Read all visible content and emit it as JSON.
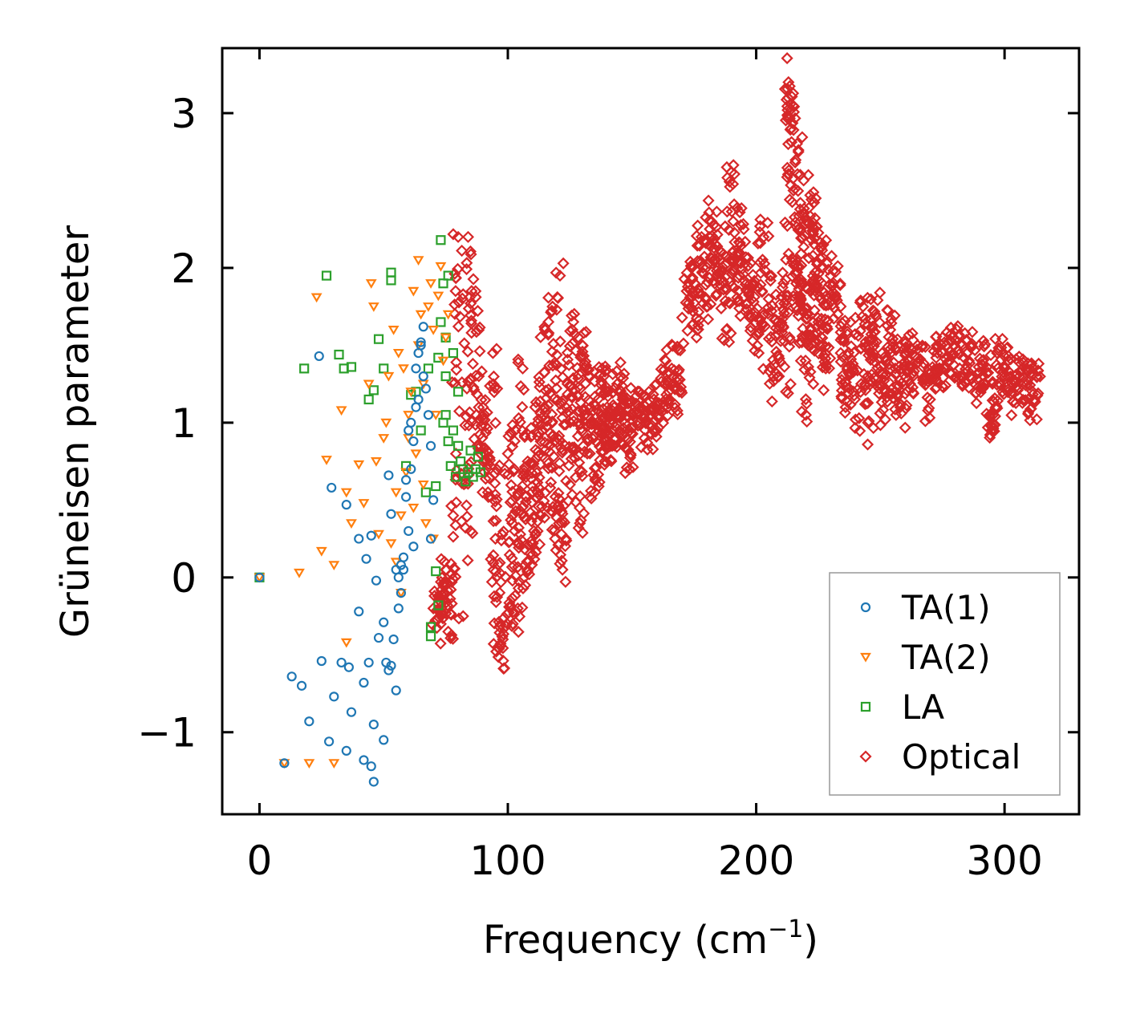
{
  "chart_data": {
    "type": "scatter",
    "title": "",
    "xlabel": "Frequency (cm",
    "xlabel_sup": "−1",
    "xlabel_end": ")",
    "ylabel": "Grüneisen parameter",
    "xlim": [
      -15,
      330
    ],
    "ylim": [
      -1.53,
      3.42
    ],
    "xticks": [
      0,
      100,
      200,
      300
    ],
    "xtick_labels": [
      "0",
      "100",
      "200",
      "300"
    ],
    "yticks": [
      -1,
      0,
      1,
      2,
      3
    ],
    "ytick_labels": [
      "−1",
      "0",
      "1",
      "2",
      "3"
    ],
    "grid": false,
    "legend_position": "lower-right",
    "series": [
      {
        "name": "TA(1)",
        "marker": "circle",
        "color": "#1f77b4",
        "points": [
          [
            0,
            0.0
          ],
          [
            10,
            -1.2
          ],
          [
            13,
            -0.64
          ],
          [
            17,
            -0.7
          ],
          [
            20,
            -0.93
          ],
          [
            25,
            -0.54
          ],
          [
            28,
            -1.06
          ],
          [
            30,
            -0.77
          ],
          [
            33,
            -0.55
          ],
          [
            35,
            -1.12
          ],
          [
            36,
            -0.58
          ],
          [
            37,
            -0.87
          ],
          [
            40,
            -0.22
          ],
          [
            42,
            -0.68
          ],
          [
            44,
            -0.55
          ],
          [
            46,
            -0.95
          ],
          [
            48,
            -0.39
          ],
          [
            50,
            -1.05
          ],
          [
            51,
            -0.55
          ],
          [
            53,
            -0.57
          ],
          [
            55,
            -0.73
          ],
          [
            45,
            -1.22
          ],
          [
            46,
            -1.32
          ],
          [
            42,
            -1.18
          ],
          [
            24,
            1.43
          ],
          [
            29,
            0.58
          ],
          [
            35,
            0.47
          ],
          [
            40,
            0.25
          ],
          [
            43,
            0.12
          ],
          [
            45,
            0.27
          ],
          [
            47,
            -0.02
          ],
          [
            50,
            -0.29
          ],
          [
            52,
            0.66
          ],
          [
            53,
            0.41
          ],
          [
            55,
            0.05
          ],
          [
            56,
            0.0
          ],
          [
            57,
            -0.1
          ],
          [
            58,
            0.13
          ],
          [
            59,
            0.63
          ],
          [
            60,
            0.95
          ],
          [
            61,
            1.0
          ],
          [
            62,
            0.88
          ],
          [
            63,
            1.1
          ],
          [
            64,
            1.15
          ],
          [
            64,
            1.45
          ],
          [
            65,
            1.5
          ],
          [
            66,
            1.62
          ],
          [
            66,
            1.3
          ],
          [
            67,
            1.22
          ],
          [
            68,
            1.05
          ],
          [
            69,
            0.85
          ],
          [
            70,
            0.5
          ],
          [
            69,
            0.25
          ],
          [
            62,
            0.2
          ],
          [
            60,
            0.3
          ],
          [
            58,
            0.05
          ],
          [
            56,
            -0.2
          ],
          [
            54,
            -0.4
          ],
          [
            52,
            -0.6
          ],
          [
            57,
            0.08
          ],
          [
            59,
            0.52
          ],
          [
            61,
            0.7
          ],
          [
            63,
            1.35
          ],
          [
            65,
            1.52
          ]
        ]
      },
      {
        "name": "TA(2)",
        "marker": "triangle",
        "color": "#ff7f0e",
        "points": [
          [
            0,
            0.0
          ],
          [
            10,
            -1.2
          ],
          [
            16,
            0.03
          ],
          [
            20,
            -1.2
          ],
          [
            23,
            1.81
          ],
          [
            25,
            0.17
          ],
          [
            27,
            0.76
          ],
          [
            30,
            -1.2
          ],
          [
            30,
            0.08
          ],
          [
            33,
            1.08
          ],
          [
            35,
            -0.42
          ],
          [
            35,
            0.55
          ],
          [
            37,
            0.35
          ],
          [
            40,
            0.73
          ],
          [
            42,
            0.48
          ],
          [
            44,
            1.25
          ],
          [
            45,
            1.9
          ],
          [
            46,
            1.75
          ],
          [
            47,
            0.75
          ],
          [
            48,
            0.28
          ],
          [
            50,
            0.9
          ],
          [
            51,
            1.0
          ],
          [
            52,
            1.3
          ],
          [
            53,
            0.22
          ],
          [
            54,
            1.6
          ],
          [
            55,
            0.55
          ],
          [
            56,
            1.45
          ],
          [
            57,
            0.4
          ],
          [
            58,
            1.35
          ],
          [
            59,
            0.68
          ],
          [
            60,
            1.05
          ],
          [
            61,
            1.2
          ],
          [
            62,
            1.85
          ],
          [
            63,
            0.8
          ],
          [
            64,
            1.5
          ],
          [
            64,
            2.05
          ],
          [
            65,
            1.7
          ],
          [
            66,
            1.25
          ],
          [
            67,
            0.35
          ],
          [
            68,
            1.75
          ],
          [
            69,
            1.9
          ],
          [
            70,
            1.6
          ],
          [
            71,
            1.05
          ],
          [
            72,
            1.82
          ],
          [
            73,
            2.01
          ],
          [
            74,
            1.4
          ],
          [
            75,
            1.55
          ],
          [
            76,
            1.7
          ],
          [
            55,
            0.1
          ],
          [
            57,
            -0.1
          ],
          [
            60,
            0.9
          ],
          [
            62,
            0.45
          ],
          [
            66,
            0.6
          ],
          [
            70,
            0.25
          ]
        ]
      },
      {
        "name": "LA",
        "marker": "square",
        "color": "#2ca02c",
        "points": [
          [
            0,
            0.0
          ],
          [
            18,
            1.35
          ],
          [
            27,
            1.95
          ],
          [
            32,
            1.44
          ],
          [
            34,
            1.35
          ],
          [
            37,
            1.36
          ],
          [
            44,
            1.15
          ],
          [
            46,
            1.21
          ],
          [
            48,
            1.54
          ],
          [
            50,
            1.35
          ],
          [
            53,
            1.92
          ],
          [
            53,
            1.97
          ],
          [
            59,
            0.72
          ],
          [
            61,
            1.18
          ],
          [
            63,
            1.2
          ],
          [
            65,
            0.95
          ],
          [
            67,
            0.55
          ],
          [
            68,
            1.35
          ],
          [
            69,
            -0.32
          ],
          [
            69,
            -0.38
          ],
          [
            71,
            0.59
          ],
          [
            71,
            0.04
          ],
          [
            72,
            -0.18
          ],
          [
            72,
            1.42
          ],
          [
            73,
            1.65
          ],
          [
            73,
            2.18
          ],
          [
            74,
            1.9
          ],
          [
            75,
            1.05
          ],
          [
            75,
            1.55
          ],
          [
            76,
            0.88
          ],
          [
            77,
            0.72
          ],
          [
            78,
            0.95
          ],
          [
            78,
            1.45
          ],
          [
            79,
            0.65
          ],
          [
            80,
            1.2
          ],
          [
            80,
            0.85
          ],
          [
            81,
            0.75
          ],
          [
            82,
            0.7
          ],
          [
            83,
            0.62
          ],
          [
            84,
            0.68
          ],
          [
            85,
            0.82
          ],
          [
            86,
            0.65
          ],
          [
            87,
            0.7
          ],
          [
            88,
            0.78
          ],
          [
            89,
            0.68
          ],
          [
            76,
            1.95
          ],
          [
            75,
            1.3
          ],
          [
            74,
            1.0
          ]
        ]
      },
      {
        "name": "Optical",
        "marker": "diamond",
        "color": "#d62728",
        "points": [
          [
            70,
            -0.2
          ],
          [
            73,
            -0.3
          ],
          [
            75,
            0.05
          ],
          [
            76,
            -0.35
          ],
          [
            78,
            0.4
          ],
          [
            80,
            2.2
          ],
          [
            82,
            -0.25
          ],
          [
            84,
            2.2
          ],
          [
            85,
            0.3
          ],
          [
            87,
            1.85
          ],
          [
            88,
            0.85
          ],
          [
            90,
            1.1
          ],
          [
            92,
            0.55
          ],
          [
            94,
            1.45
          ],
          [
            95,
            0.25
          ],
          [
            96,
            -0.45
          ],
          [
            98,
            -0.4
          ],
          [
            100,
            0.8
          ],
          [
            102,
            -0.3
          ],
          [
            103,
            0.95
          ],
          [
            104,
            -0.2
          ],
          [
            106,
            1.35
          ],
          [
            107,
            -0.05
          ],
          [
            108,
            0.75
          ],
          [
            110,
            0.15
          ],
          [
            111,
            1.1
          ],
          [
            112,
            0.3
          ],
          [
            114,
            0.95
          ],
          [
            115,
            1.6
          ],
          [
            116,
            0.45
          ],
          [
            118,
            1.75
          ],
          [
            119,
            0.25
          ],
          [
            120,
            0.9
          ],
          [
            121,
            1.95
          ],
          [
            122,
            0.05
          ],
          [
            124,
            1.25
          ],
          [
            125,
            0.6
          ],
          [
            126,
            1.6
          ],
          [
            128,
            1.0
          ],
          [
            129,
            0.35
          ],
          [
            130,
            1.5
          ],
          [
            132,
            0.8
          ],
          [
            133,
            1.3
          ],
          [
            135,
            0.55
          ],
          [
            136,
            1.0
          ],
          [
            138,
            1.35
          ],
          [
            139,
            0.75
          ],
          [
            140,
            1.1
          ],
          [
            142,
            0.85
          ],
          [
            144,
            1.25
          ],
          [
            145,
            0.95
          ],
          [
            147,
            1.15
          ],
          [
            149,
            0.7
          ],
          [
            150,
            1.05
          ],
          [
            153,
            1.2
          ],
          [
            155,
            0.9
          ],
          [
            158,
            1.1
          ],
          [
            160,
            0.95
          ],
          [
            163,
            1.25
          ],
          [
            166,
            1.35
          ],
          [
            169,
            1.2
          ],
          [
            172,
            1.85
          ],
          [
            174,
            2.0
          ],
          [
            176,
            1.55
          ],
          [
            178,
            2.2
          ],
          [
            180,
            1.75
          ],
          [
            182,
            2.3
          ],
          [
            184,
            1.95
          ],
          [
            186,
            2.1
          ],
          [
            188,
            1.6
          ],
          [
            190,
            2.62
          ],
          [
            191,
            2.05
          ],
          [
            193,
            1.85
          ],
          [
            195,
            2.25
          ],
          [
            197,
            1.7
          ],
          [
            199,
            1.9
          ],
          [
            201,
            1.45
          ],
          [
            203,
            2.2
          ],
          [
            205,
            1.8
          ],
          [
            207,
            1.3
          ],
          [
            209,
            1.6
          ],
          [
            211,
            1.9
          ],
          [
            212,
            1.2
          ],
          [
            213,
            3.2
          ],
          [
            214,
            2.9
          ],
          [
            215,
            2.5
          ],
          [
            216,
            1.75
          ],
          [
            217,
            2.75
          ],
          [
            218,
            1.4
          ],
          [
            219,
            2.35
          ],
          [
            220,
            1.05
          ],
          [
            221,
            2.6
          ],
          [
            222,
            1.85
          ],
          [
            223,
            1.25
          ],
          [
            224,
            2.45
          ],
          [
            225,
            1.65
          ],
          [
            227,
            2.15
          ],
          [
            228,
            1.35
          ],
          [
            230,
            1.95
          ],
          [
            232,
            1.8
          ],
          [
            234,
            1.45
          ],
          [
            236,
            1.1
          ],
          [
            238,
            1.65
          ],
          [
            240,
            1.02
          ],
          [
            243,
            1.75
          ],
          [
            245,
            1.0
          ],
          [
            246,
            1.45
          ],
          [
            248,
            1.7
          ],
          [
            250,
            1.25
          ],
          [
            252,
            1.02
          ],
          [
            254,
            1.6
          ],
          [
            256,
            1.35
          ],
          [
            258,
            1.1
          ],
          [
            260,
            1.45
          ],
          [
            262,
            1.25
          ],
          [
            265,
            1.5
          ],
          [
            268,
            1.3
          ],
          [
            270,
            1.15
          ],
          [
            273,
            1.45
          ],
          [
            276,
            1.35
          ],
          [
            279,
            1.55
          ],
          [
            282,
            1.3
          ],
          [
            285,
            1.45
          ],
          [
            288,
            1.25
          ],
          [
            291,
            1.4
          ],
          [
            294,
            1.05
          ],
          [
            295,
            0.98
          ],
          [
            297,
            1.45
          ],
          [
            300,
            1.35
          ],
          [
            303,
            1.2
          ],
          [
            306,
            1.3
          ],
          [
            309,
            1.25
          ],
          [
            312,
            1.15
          ],
          [
            313,
            1.3
          ]
        ]
      }
    ]
  }
}
